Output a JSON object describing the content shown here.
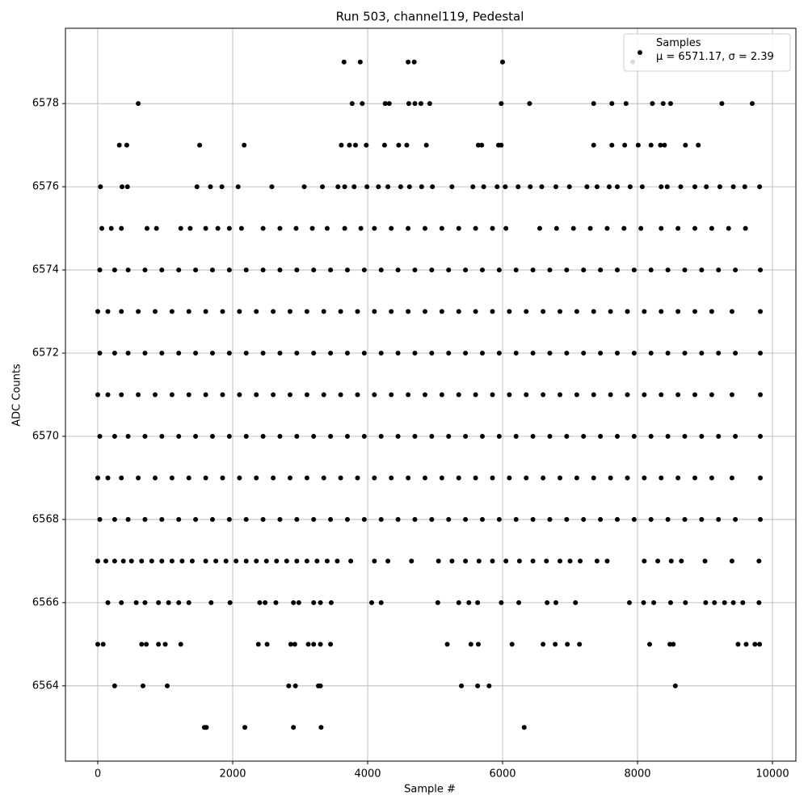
{
  "chart_data": {
    "type": "scatter",
    "title": "Run 503, channel119, Pedestal",
    "x_label": "Sample #",
    "y_label": "ADC Counts",
    "xlim": [
      -479,
      10347
    ],
    "ylim": [
      6562.19,
      6579.81
    ],
    "xticks": [
      0,
      2000,
      4000,
      6000,
      8000,
      10000
    ],
    "yticks": [
      6564,
      6566,
      6568,
      6570,
      6572,
      6574,
      6576,
      6578
    ],
    "grid": true,
    "legend": "upper right",
    "series": [
      {
        "name": "Samples\nμ = 6571.17, σ = 2.39",
        "color": "#000000",
        "x": [
          3650,
          3890,
          4600,
          4690,
          6000,
          7930,
          600,
          3770,
          3920,
          4260,
          4320,
          4610,
          4700,
          4790,
          4920,
          5980,
          6400,
          7350,
          7620,
          7830,
          8220,
          8380,
          8490,
          9250,
          9700,
          320,
          430,
          1510,
          2170,
          3610,
          3730,
          3820,
          3980,
          4250,
          4460,
          4580,
          4870,
          5640,
          5690,
          5940,
          5980,
          7350,
          7620,
          7810,
          8010,
          8200,
          8340,
          8400,
          8710,
          8900,
          40,
          360,
          440,
          1470,
          1670,
          1840,
          2080,
          2580,
          3060,
          3330,
          3560,
          3660,
          3800,
          3990,
          4160,
          4300,
          4490,
          4620,
          4800,
          4960,
          5250,
          5560,
          5720,
          5920,
          6040,
          6230,
          6410,
          6580,
          6790,
          6990,
          7250,
          7400,
          7580,
          7700,
          7890,
          8070,
          8350,
          8440,
          8640,
          8850,
          9020,
          9220,
          9420,
          9590,
          9810,
          60,
          200,
          350,
          730,
          870,
          1230,
          1370,
          1600,
          1780,
          1950,
          2130,
          2450,
          2700,
          2940,
          3180,
          3400,
          3660,
          3900,
          4100,
          4350,
          4600,
          4850,
          5100,
          5350,
          5600,
          5850,
          6050,
          6550,
          6800,
          7050,
          7300,
          7550,
          7800,
          8050,
          8350,
          8600,
          8850,
          9100,
          9350,
          9600,
          30,
          250,
          450,
          700,
          950,
          1200,
          1450,
          1700,
          1950,
          2200,
          2450,
          2700,
          2950,
          3200,
          3450,
          3700,
          3950,
          4200,
          4450,
          4700,
          4950,
          5200,
          5450,
          5700,
          5950,
          6200,
          6450,
          6700,
          6950,
          7200,
          7450,
          7700,
          7950,
          8200,
          8450,
          8700,
          8950,
          9200,
          9450,
          9820,
          0,
          150,
          350,
          600,
          850,
          1100,
          1350,
          1600,
          1850,
          2100,
          2350,
          2600,
          2850,
          3100,
          3350,
          3600,
          3850,
          4100,
          4350,
          4600,
          4850,
          5100,
          5350,
          5600,
          5850,
          6100,
          6350,
          6600,
          6850,
          7100,
          7350,
          7600,
          7850,
          8100,
          8350,
          8600,
          8850,
          9100,
          9400,
          9820,
          30,
          250,
          450,
          700,
          950,
          1200,
          1450,
          1700,
          1950,
          2200,
          2450,
          2700,
          2950,
          3200,
          3450,
          3700,
          3950,
          4200,
          4450,
          4700,
          4950,
          5200,
          5450,
          5700,
          5950,
          6200,
          6450,
          6700,
          6950,
          7200,
          7450,
          7700,
          7950,
          8200,
          8450,
          8700,
          8950,
          9200,
          9450,
          9820,
          0,
          150,
          350,
          600,
          850,
          1100,
          1350,
          1600,
          1850,
          2100,
          2350,
          2600,
          2850,
          3100,
          3350,
          3600,
          3850,
          4100,
          4350,
          4600,
          4850,
          5100,
          5350,
          5600,
          5850,
          6100,
          6350,
          6600,
          6850,
          7100,
          7350,
          7600,
          7850,
          8100,
          8350,
          8600,
          8850,
          9100,
          9400,
          9820,
          30,
          250,
          450,
          700,
          950,
          1200,
          1450,
          1700,
          1950,
          2200,
          2450,
          2700,
          2950,
          3200,
          3450,
          3700,
          3950,
          4200,
          4450,
          4700,
          4950,
          5200,
          5450,
          5700,
          5950,
          6200,
          6450,
          6700,
          6950,
          7200,
          7450,
          7700,
          7950,
          8200,
          8450,
          8700,
          8950,
          9200,
          9450,
          9820,
          0,
          150,
          350,
          600,
          850,
          1100,
          1350,
          1600,
          1850,
          2100,
          2350,
          2600,
          2850,
          3100,
          3350,
          3600,
          3850,
          4100,
          4350,
          4600,
          4850,
          5100,
          5350,
          5600,
          5850,
          6100,
          6350,
          6600,
          6850,
          7100,
          7350,
          7600,
          7850,
          8100,
          8350,
          8600,
          8850,
          9100,
          9400,
          9820,
          30,
          250,
          450,
          700,
          950,
          1200,
          1450,
          1700,
          1950,
          2200,
          2450,
          2700,
          2950,
          3200,
          3450,
          3700,
          3950,
          4200,
          4450,
          4700,
          4950,
          5200,
          5450,
          5700,
          5950,
          6200,
          6450,
          6700,
          6950,
          7200,
          7450,
          7700,
          7950,
          8200,
          8450,
          8700,
          8950,
          9200,
          9450,
          9820,
          0,
          120,
          250,
          380,
          500,
          650,
          800,
          950,
          1100,
          1250,
          1400,
          1600,
          1750,
          1900,
          2050,
          2200,
          2350,
          2500,
          2650,
          2800,
          2950,
          3100,
          3250,
          3400,
          3550,
          3750,
          4100,
          4300,
          4650,
          5050,
          5250,
          5450,
          5650,
          5850,
          6050,
          6250,
          6450,
          6650,
          6850,
          7000,
          7150,
          7400,
          7550,
          8100,
          8300,
          8500,
          8650,
          9000,
          9400,
          9800,
          150,
          350,
          570,
          700,
          900,
          1050,
          1200,
          1350,
          1680,
          1960,
          2400,
          2480,
          2640,
          2900,
          2980,
          3200,
          3300,
          3460,
          4060,
          4200,
          5040,
          5350,
          5500,
          5630,
          5980,
          6240,
          6660,
          6790,
          7080,
          7880,
          8090,
          8240,
          8490,
          8710,
          9010,
          9140,
          9290,
          9420,
          9560,
          9800,
          0,
          80,
          650,
          720,
          900,
          1000,
          1230,
          2380,
          2510,
          2860,
          2920,
          3120,
          3200,
          3300,
          3450,
          5180,
          5530,
          5640,
          6140,
          6600,
          6780,
          6960,
          7140,
          8180,
          8480,
          8530,
          9490,
          9610,
          9740,
          9810,
          250,
          670,
          1030,
          2830,
          2930,
          3270,
          3300,
          5390,
          5630,
          5800,
          8560,
          1580,
          1610,
          2180,
          2900,
          3310,
          6320
        ],
        "values": [
          6579,
          6579,
          6579,
          6579,
          6579,
          6579,
          6578,
          6578,
          6578,
          6578,
          6578,
          6578,
          6578,
          6578,
          6578,
          6578,
          6578,
          6578,
          6578,
          6578,
          6578,
          6578,
          6578,
          6578,
          6578,
          6577,
          6577,
          6577,
          6577,
          6577,
          6577,
          6577,
          6577,
          6577,
          6577,
          6577,
          6577,
          6577,
          6577,
          6577,
          6577,
          6577,
          6577,
          6577,
          6577,
          6577,
          6577,
          6577,
          6577,
          6577,
          6576,
          6576,
          6576,
          6576,
          6576,
          6576,
          6576,
          6576,
          6576,
          6576,
          6576,
          6576,
          6576,
          6576,
          6576,
          6576,
          6576,
          6576,
          6576,
          6576,
          6576,
          6576,
          6576,
          6576,
          6576,
          6576,
          6576,
          6576,
          6576,
          6576,
          6576,
          6576,
          6576,
          6576,
          6576,
          6576,
          6576,
          6576,
          6576,
          6576,
          6576,
          6576,
          6576,
          6576,
          6576,
          6575,
          6575,
          6575,
          6575,
          6575,
          6575,
          6575,
          6575,
          6575,
          6575,
          6575,
          6575,
          6575,
          6575,
          6575,
          6575,
          6575,
          6575,
          6575,
          6575,
          6575,
          6575,
          6575,
          6575,
          6575,
          6575,
          6575,
          6575,
          6575,
          6575,
          6575,
          6575,
          6575,
          6575,
          6575,
          6575,
          6575,
          6575,
          6575,
          6575,
          6574,
          6574,
          6574,
          6574,
          6574,
          6574,
          6574,
          6574,
          6574,
          6574,
          6574,
          6574,
          6574,
          6574,
          6574,
          6574,
          6574,
          6574,
          6574,
          6574,
          6574,
          6574,
          6574,
          6574,
          6574,
          6574,
          6574,
          6574,
          6574,
          6574,
          6574,
          6574,
          6574,
          6574,
          6574,
          6574,
          6574,
          6574,
          6574,
          6574,
          6573,
          6573,
          6573,
          6573,
          6573,
          6573,
          6573,
          6573,
          6573,
          6573,
          6573,
          6573,
          6573,
          6573,
          6573,
          6573,
          6573,
          6573,
          6573,
          6573,
          6573,
          6573,
          6573,
          6573,
          6573,
          6573,
          6573,
          6573,
          6573,
          6573,
          6573,
          6573,
          6573,
          6573,
          6573,
          6573,
          6573,
          6573,
          6573,
          6573,
          6572,
          6572,
          6572,
          6572,
          6572,
          6572,
          6572,
          6572,
          6572,
          6572,
          6572,
          6572,
          6572,
          6572,
          6572,
          6572,
          6572,
          6572,
          6572,
          6572,
          6572,
          6572,
          6572,
          6572,
          6572,
          6572,
          6572,
          6572,
          6572,
          6572,
          6572,
          6572,
          6572,
          6572,
          6572,
          6572,
          6572,
          6572,
          6572,
          6572,
          6571,
          6571,
          6571,
          6571,
          6571,
          6571,
          6571,
          6571,
          6571,
          6571,
          6571,
          6571,
          6571,
          6571,
          6571,
          6571,
          6571,
          6571,
          6571,
          6571,
          6571,
          6571,
          6571,
          6571,
          6571,
          6571,
          6571,
          6571,
          6571,
          6571,
          6571,
          6571,
          6571,
          6571,
          6571,
          6571,
          6571,
          6571,
          6571,
          6571,
          6570,
          6570,
          6570,
          6570,
          6570,
          6570,
          6570,
          6570,
          6570,
          6570,
          6570,
          6570,
          6570,
          6570,
          6570,
          6570,
          6570,
          6570,
          6570,
          6570,
          6570,
          6570,
          6570,
          6570,
          6570,
          6570,
          6570,
          6570,
          6570,
          6570,
          6570,
          6570,
          6570,
          6570,
          6570,
          6570,
          6570,
          6570,
          6570,
          6570,
          6569,
          6569,
          6569,
          6569,
          6569,
          6569,
          6569,
          6569,
          6569,
          6569,
          6569,
          6569,
          6569,
          6569,
          6569,
          6569,
          6569,
          6569,
          6569,
          6569,
          6569,
          6569,
          6569,
          6569,
          6569,
          6569,
          6569,
          6569,
          6569,
          6569,
          6569,
          6569,
          6569,
          6569,
          6569,
          6569,
          6569,
          6569,
          6569,
          6569,
          6568,
          6568,
          6568,
          6568,
          6568,
          6568,
          6568,
          6568,
          6568,
          6568,
          6568,
          6568,
          6568,
          6568,
          6568,
          6568,
          6568,
          6568,
          6568,
          6568,
          6568,
          6568,
          6568,
          6568,
          6568,
          6568,
          6568,
          6568,
          6568,
          6568,
          6568,
          6568,
          6568,
          6568,
          6568,
          6568,
          6568,
          6568,
          6568,
          6568,
          6567,
          6567,
          6567,
          6567,
          6567,
          6567,
          6567,
          6567,
          6567,
          6567,
          6567,
          6567,
          6567,
          6567,
          6567,
          6567,
          6567,
          6567,
          6567,
          6567,
          6567,
          6567,
          6567,
          6567,
          6567,
          6567,
          6567,
          6567,
          6567,
          6567,
          6567,
          6567,
          6567,
          6567,
          6567,
          6567,
          6567,
          6567,
          6567,
          6567,
          6567,
          6567,
          6567,
          6567,
          6567,
          6567,
          6567,
          6567,
          6567,
          6567,
          6566,
          6566,
          6566,
          6566,
          6566,
          6566,
          6566,
          6566,
          6566,
          6566,
          6566,
          6566,
          6566,
          6566,
          6566,
          6566,
          6566,
          6566,
          6566,
          6566,
          6566,
          6566,
          6566,
          6566,
          6566,
          6566,
          6566,
          6566,
          6566,
          6566,
          6566,
          6566,
          6566,
          6566,
          6566,
          6566,
          6566,
          6566,
          6566,
          6566,
          6565,
          6565,
          6565,
          6565,
          6565,
          6565,
          6565,
          6565,
          6565,
          6565,
          6565,
          6565,
          6565,
          6565,
          6565,
          6565,
          6565,
          6565,
          6565,
          6565,
          6565,
          6565,
          6565,
          6565,
          6565,
          6565,
          6565,
          6565,
          6565,
          6565,
          6564,
          6564,
          6564,
          6564,
          6564,
          6564,
          6564,
          6564,
          6564,
          6564,
          6564,
          6563,
          6563,
          6563,
          6563,
          6563,
          6563
        ]
      }
    ]
  }
}
